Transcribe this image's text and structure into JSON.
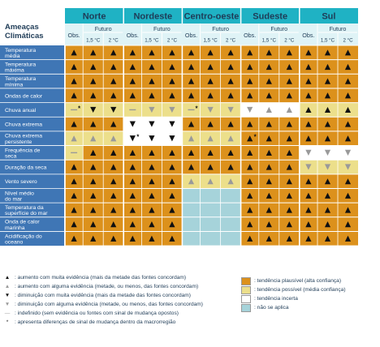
{
  "table": {
    "corner_title": [
      "Ameaças",
      "Climáticas"
    ],
    "regions": [
      "Norte",
      "Nordeste",
      "Centro-oeste",
      "Sudeste",
      "Sul"
    ],
    "obs_label": "Obs.",
    "future_label": "Futuro",
    "scenario_labels": [
      "1,5 °C",
      "2 °C"
    ],
    "threats": [
      [
        "Temperatura",
        "média"
      ],
      [
        "Temperatura",
        "máxima"
      ],
      [
        "Temperatura",
        "mínima"
      ],
      [
        "Ondas de calor"
      ],
      [
        "Chuva anual"
      ],
      [
        "Chuva extrema"
      ],
      [
        "Chuva extrema",
        "persistente"
      ],
      [
        "Frequência de",
        "seca"
      ],
      [
        "Duração da seca"
      ],
      [
        "Vento severo"
      ],
      [
        "Nível médio",
        "do mar"
      ],
      [
        "Temperatura da",
        "superfície do mar"
      ],
      [
        "Onda de calor",
        "marinha"
      ],
      [
        "Acidificação do",
        "oceano"
      ]
    ]
  },
  "chart_data": {
    "type": "table",
    "columns": [
      "Norte Obs.",
      "Norte 1,5 °C",
      "Norte 2 °C",
      "Nordeste Obs.",
      "Nordeste 1,5 °C",
      "Nordeste 2 °C",
      "Centro-oeste Obs.",
      "Centro-oeste 1,5 °C",
      "Centro-oeste 2 °C",
      "Sudeste Obs.",
      "Sudeste 1,5 °C",
      "Sudeste 2 °C",
      "Sul Obs.",
      "Sul 1,5 °C",
      "Sul 2 °C"
    ],
    "cells_note": "each cell: [background, symbol]; background O=plausível, Y=possível, W=incerta, B=não se aplica; symbol U=up strong, u=up some, D=down strong, d=down some, n=indefinido, U*/n* = with divergence mark",
    "rows": [
      [
        [
          "O",
          "U"
        ],
        [
          "O",
          "U"
        ],
        [
          "O",
          "U"
        ],
        [
          "O",
          "U"
        ],
        [
          "O",
          "U"
        ],
        [
          "O",
          "U"
        ],
        [
          "O",
          "U"
        ],
        [
          "O",
          "U"
        ],
        [
          "O",
          "U"
        ],
        [
          "O",
          "U"
        ],
        [
          "O",
          "U"
        ],
        [
          "O",
          "U"
        ],
        [
          "O",
          "U"
        ],
        [
          "O",
          "U"
        ],
        [
          "O",
          "U"
        ]
      ],
      [
        [
          "O",
          "U"
        ],
        [
          "O",
          "U"
        ],
        [
          "O",
          "U"
        ],
        [
          "O",
          "U"
        ],
        [
          "O",
          "U"
        ],
        [
          "O",
          "U"
        ],
        [
          "O",
          "U"
        ],
        [
          "O",
          "U"
        ],
        [
          "O",
          "U"
        ],
        [
          "O",
          "U"
        ],
        [
          "O",
          "U"
        ],
        [
          "O",
          "U"
        ],
        [
          "O",
          "U"
        ],
        [
          "O",
          "U"
        ],
        [
          "O",
          "U"
        ]
      ],
      [
        [
          "O",
          "U"
        ],
        [
          "O",
          "U"
        ],
        [
          "O",
          "U"
        ],
        [
          "O",
          "U"
        ],
        [
          "O",
          "U"
        ],
        [
          "O",
          "U"
        ],
        [
          "O",
          "U"
        ],
        [
          "O",
          "U"
        ],
        [
          "O",
          "U"
        ],
        [
          "O",
          "U"
        ],
        [
          "O",
          "U"
        ],
        [
          "O",
          "U"
        ],
        [
          "O",
          "U"
        ],
        [
          "O",
          "U"
        ],
        [
          "O",
          "U"
        ]
      ],
      [
        [
          "O",
          "U"
        ],
        [
          "O",
          "U"
        ],
        [
          "O",
          "U"
        ],
        [
          "O",
          "U"
        ],
        [
          "O",
          "U"
        ],
        [
          "O",
          "U"
        ],
        [
          "O",
          "U"
        ],
        [
          "O",
          "U"
        ],
        [
          "O",
          "U"
        ],
        [
          "O",
          "U"
        ],
        [
          "O",
          "U"
        ],
        [
          "O",
          "U"
        ],
        [
          "O",
          "U"
        ],
        [
          "O",
          "U"
        ],
        [
          "O",
          "U"
        ]
      ],
      [
        [
          "Y",
          "n*"
        ],
        [
          "Y",
          "D"
        ],
        [
          "Y",
          "D"
        ],
        [
          "Y",
          "n"
        ],
        [
          "Y",
          "d"
        ],
        [
          "Y",
          "d"
        ],
        [
          "Y",
          "n*"
        ],
        [
          "Y",
          "d"
        ],
        [
          "Y",
          "d"
        ],
        [
          "W",
          "d"
        ],
        [
          "W",
          "u"
        ],
        [
          "W",
          "u"
        ],
        [
          "Y",
          "U"
        ],
        [
          "Y",
          "U"
        ],
        [
          "Y",
          "U"
        ]
      ],
      [
        [
          "O",
          "U"
        ],
        [
          "O",
          "U"
        ],
        [
          "O",
          "U"
        ],
        [
          "W",
          "D"
        ],
        [
          "W",
          "D"
        ],
        [
          "W",
          "D"
        ],
        [
          "O",
          "U"
        ],
        [
          "O",
          "U"
        ],
        [
          "O",
          "U"
        ],
        [
          "O",
          "U"
        ],
        [
          "O",
          "U"
        ],
        [
          "O",
          "U"
        ],
        [
          "O",
          "U"
        ],
        [
          "O",
          "U"
        ],
        [
          "O",
          "U"
        ]
      ],
      [
        [
          "Y",
          "u"
        ],
        [
          "Y",
          "u"
        ],
        [
          "Y",
          "u"
        ],
        [
          "W",
          "D*"
        ],
        [
          "W",
          "D"
        ],
        [
          "W",
          "D"
        ],
        [
          "Y",
          "u"
        ],
        [
          "Y",
          "u"
        ],
        [
          "Y",
          "u"
        ],
        [
          "O",
          "U*"
        ],
        [
          "O",
          "U"
        ],
        [
          "O",
          "U"
        ],
        [
          "O",
          "U"
        ],
        [
          "O",
          "U"
        ],
        [
          "O",
          "U"
        ]
      ],
      [
        [
          "Y",
          "n"
        ],
        [
          "O",
          "U"
        ],
        [
          "O",
          "U"
        ],
        [
          "O",
          "U"
        ],
        [
          "O",
          "U"
        ],
        [
          "O",
          "U"
        ],
        [
          "O",
          "U"
        ],
        [
          "O",
          "U"
        ],
        [
          "O",
          "U"
        ],
        [
          "O",
          "U"
        ],
        [
          "O",
          "U"
        ],
        [
          "O",
          "U"
        ],
        [
          "W",
          "d"
        ],
        [
          "W",
          "d"
        ],
        [
          "W",
          "d"
        ]
      ],
      [
        [
          "O",
          "U"
        ],
        [
          "O",
          "U"
        ],
        [
          "O",
          "U"
        ],
        [
          "O",
          "U"
        ],
        [
          "O",
          "U"
        ],
        [
          "O",
          "U"
        ],
        [
          "O",
          "U"
        ],
        [
          "O",
          "U"
        ],
        [
          "O",
          "U"
        ],
        [
          "O",
          "U"
        ],
        [
          "O",
          "U"
        ],
        [
          "O",
          "U"
        ],
        [
          "Y",
          "d"
        ],
        [
          "Y",
          "d"
        ],
        [
          "Y",
          "d"
        ]
      ],
      [
        [
          "O",
          "U"
        ],
        [
          "O",
          "U"
        ],
        [
          "O",
          "U"
        ],
        [
          "O",
          "U"
        ],
        [
          "O",
          "U"
        ],
        [
          "O",
          "U"
        ],
        [
          "Y",
          "u"
        ],
        [
          "Y",
          "u"
        ],
        [
          "Y",
          "u"
        ],
        [
          "O",
          "U"
        ],
        [
          "O",
          "U"
        ],
        [
          "O",
          "U"
        ],
        [
          "O",
          "U"
        ],
        [
          "O",
          "U"
        ],
        [
          "O",
          "U"
        ]
      ],
      [
        [
          "O",
          "U"
        ],
        [
          "O",
          "U"
        ],
        [
          "O",
          "U"
        ],
        [
          "O",
          "U"
        ],
        [
          "O",
          "U"
        ],
        [
          "O",
          "U"
        ],
        [
          "B",
          ""
        ],
        [
          "B",
          ""
        ],
        [
          "B",
          ""
        ],
        [
          "O",
          "U"
        ],
        [
          "O",
          "U"
        ],
        [
          "O",
          "U"
        ],
        [
          "O",
          "U"
        ],
        [
          "O",
          "U"
        ],
        [
          "O",
          "U"
        ]
      ],
      [
        [
          "O",
          "U"
        ],
        [
          "O",
          "U"
        ],
        [
          "O",
          "U"
        ],
        [
          "O",
          "U"
        ],
        [
          "O",
          "U"
        ],
        [
          "O",
          "U"
        ],
        [
          "B",
          ""
        ],
        [
          "B",
          ""
        ],
        [
          "B",
          ""
        ],
        [
          "O",
          "U"
        ],
        [
          "O",
          "U"
        ],
        [
          "O",
          "U"
        ],
        [
          "O",
          "U"
        ],
        [
          "O",
          "U"
        ],
        [
          "O",
          "U"
        ]
      ],
      [
        [
          "O",
          "U"
        ],
        [
          "O",
          "U"
        ],
        [
          "O",
          "U"
        ],
        [
          "O",
          "U"
        ],
        [
          "O",
          "U"
        ],
        [
          "O",
          "U"
        ],
        [
          "B",
          ""
        ],
        [
          "B",
          ""
        ],
        [
          "B",
          ""
        ],
        [
          "O",
          "U"
        ],
        [
          "O",
          "U"
        ],
        [
          "O",
          "U"
        ],
        [
          "O",
          "U"
        ],
        [
          "O",
          "U"
        ],
        [
          "O",
          "U"
        ]
      ],
      [
        [
          "O",
          "U"
        ],
        [
          "O",
          "U"
        ],
        [
          "O",
          "U"
        ],
        [
          "O",
          "U"
        ],
        [
          "O",
          "U"
        ],
        [
          "O",
          "U"
        ],
        [
          "B",
          ""
        ],
        [
          "B",
          ""
        ],
        [
          "B",
          ""
        ],
        [
          "O",
          "U"
        ],
        [
          "O",
          "U"
        ],
        [
          "O",
          "U"
        ],
        [
          "O",
          "U"
        ],
        [
          "O",
          "U"
        ],
        [
          "O",
          "U"
        ]
      ]
    ]
  },
  "colors": {
    "header_teal": "#1fb2c4",
    "header_text": "#1f3c57",
    "label_blue": "#3f76b5",
    "plausible": "#dc911c",
    "possible": "#ecdf8b",
    "uncertain": "#ffffff",
    "not_applicable": "#a6d3da",
    "symbol_dark": "#111111",
    "symbol_light": "#9a9a9a"
  },
  "legend": {
    "symbols": [
      ": aumento com muita evidência (mais da metade das fontes concordam)",
      ": aumento com alguma evidência (metade, ou menos, das fontes concordam)",
      ": diminuição com muita evidência (mais da metade das fontes concordam)",
      ": diminuição com alguma evidência (metade, ou menos, das fontes concordam)",
      ": indefinido (sem evidência ou fontes com sinal de mudança opostos)",
      ": apresenta diferenças de sinal de mudança dentro da macrorregião"
    ],
    "colors": [
      ": tendência plausível (alta confiança)",
      ": tendência possível (média confiança)",
      ": tendência incerta",
      ": não se aplica"
    ]
  }
}
